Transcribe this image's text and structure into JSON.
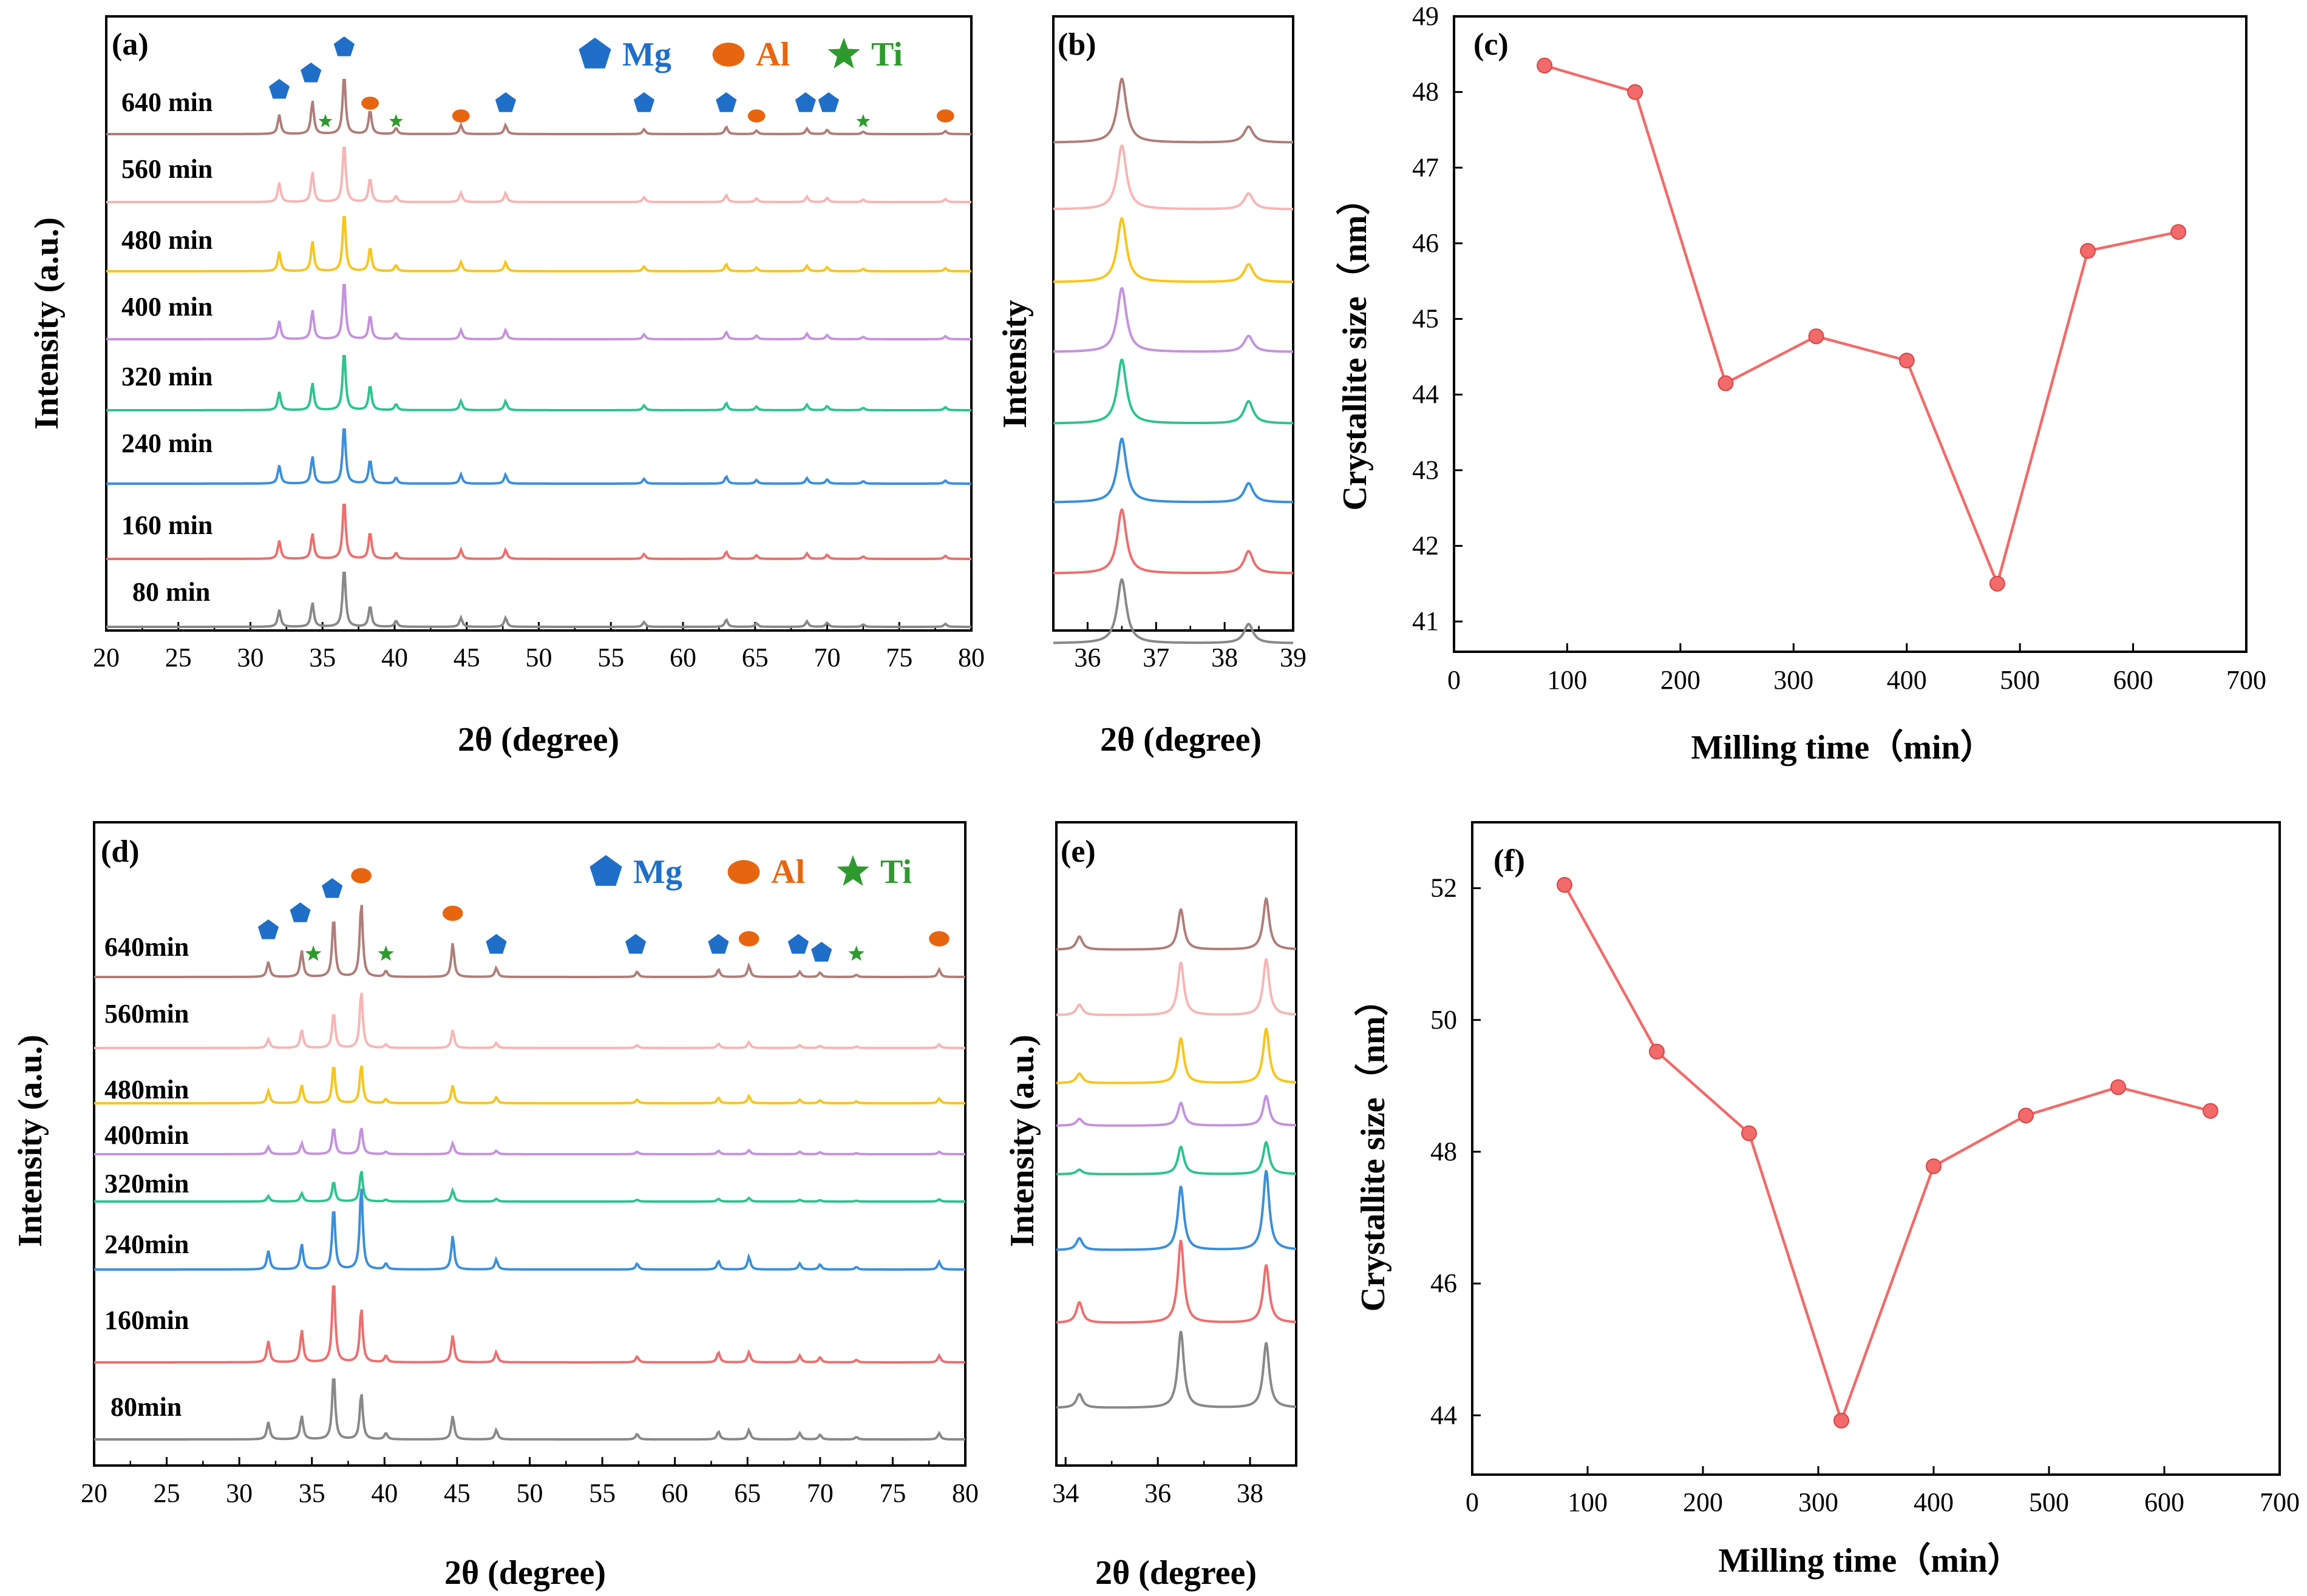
{
  "chart_data": [
    {
      "panel": "(a)",
      "type": "line",
      "xlabel": "2θ (degree)",
      "ylabel": "Intensity (a.u.)",
      "xlim": [
        20,
        80
      ],
      "xticks": [
        20,
        25,
        30,
        35,
        40,
        45,
        50,
        55,
        60,
        65,
        70,
        75,
        80
      ],
      "series": [
        {
          "name": "80 min",
          "color": "#888888"
        },
        {
          "name": "160 min",
          "color": "#ee6e6e"
        },
        {
          "name": "240 min",
          "color": "#3a8fdd"
        },
        {
          "name": "320 min",
          "color": "#2dc48d"
        },
        {
          "name": "400 min",
          "color": "#c592df"
        },
        {
          "name": "480 min",
          "color": "#f8c51c"
        },
        {
          "name": "560 min",
          "color": "#f8b5b5"
        },
        {
          "name": "640 min",
          "color": "#b07d79"
        }
      ],
      "peaks": [
        {
          "x": 32.0,
          "h": [
            0.28,
            0.3,
            0.3,
            0.3,
            0.3,
            0.32,
            0.32,
            0.32
          ]
        },
        {
          "x": 34.3,
          "h": [
            0.4,
            0.42,
            0.45,
            0.45,
            0.48,
            0.5,
            0.5,
            0.55
          ]
        },
        {
          "x": 36.5,
          "h": [
            1.0,
            1.0,
            1.0,
            1.0,
            1.0,
            1.0,
            1.0,
            1.0
          ]
        },
        {
          "x": 38.3,
          "h": [
            0.35,
            0.45,
            0.4,
            0.42,
            0.4,
            0.4,
            0.4,
            0.4
          ]
        },
        {
          "x": 40.1,
          "h": [
            0.1,
            0.1,
            0.1,
            0.1,
            0.1,
            0.1,
            0.1,
            0.1
          ]
        },
        {
          "x": 44.6,
          "h": [
            0.15,
            0.15,
            0.15,
            0.15,
            0.15,
            0.15,
            0.15,
            0.15
          ]
        },
        {
          "x": 47.7,
          "h": [
            0.15,
            0.15,
            0.15,
            0.15,
            0.15,
            0.15,
            0.15,
            0.15
          ]
        },
        {
          "x": 57.3,
          "h": [
            0.08,
            0.08,
            0.08,
            0.08,
            0.08,
            0.08,
            0.08,
            0.08
          ]
        },
        {
          "x": 63.0,
          "h": [
            0.12,
            0.12,
            0.12,
            0.12,
            0.12,
            0.12,
            0.12,
            0.12
          ]
        },
        {
          "x": 65.1,
          "h": [
            0.06,
            0.06,
            0.06,
            0.06,
            0.06,
            0.06,
            0.06,
            0.06
          ]
        },
        {
          "x": 68.6,
          "h": [
            0.09,
            0.09,
            0.09,
            0.09,
            0.09,
            0.09,
            0.09,
            0.09
          ]
        },
        {
          "x": 70.0,
          "h": [
            0.07,
            0.07,
            0.07,
            0.07,
            0.07,
            0.07,
            0.07,
            0.07
          ]
        },
        {
          "x": 72.5,
          "h": [
            0.04,
            0.04,
            0.04,
            0.04,
            0.04,
            0.04,
            0.04,
            0.04
          ]
        },
        {
          "x": 78.2,
          "h": [
            0.05,
            0.05,
            0.05,
            0.05,
            0.05,
            0.05,
            0.05,
            0.05
          ]
        }
      ],
      "legend": [
        {
          "label": "Mg",
          "marker": "pentagon",
          "color": "#1f6fc9"
        },
        {
          "label": "Al",
          "marker": "circle",
          "color": "#e8650f"
        },
        {
          "label": "Ti",
          "marker": "star",
          "color": "#2e9a2e"
        }
      ],
      "markers": [
        {
          "type": "pentagon",
          "x": 32.0,
          "level": "mid"
        },
        {
          "type": "pentagon",
          "x": 34.2,
          "level": "high"
        },
        {
          "type": "pentagon",
          "x": 36.5,
          "level": "top"
        },
        {
          "type": "star",
          "x": 35.2,
          "level": "low"
        },
        {
          "type": "circle",
          "x": 38.3,
          "level": "mid-low"
        },
        {
          "type": "star",
          "x": 40.1,
          "level": "low"
        },
        {
          "type": "circle",
          "x": 44.6,
          "level": "lower"
        },
        {
          "type": "pentagon",
          "x": 47.7,
          "level": "mid-low"
        },
        {
          "type": "pentagon",
          "x": 57.3,
          "level": "mid-low"
        },
        {
          "type": "pentagon",
          "x": 63.0,
          "level": "mid-low"
        },
        {
          "type": "circle",
          "x": 65.1,
          "level": "lower"
        },
        {
          "type": "pentagon",
          "x": 68.5,
          "level": "mid-low"
        },
        {
          "type": "pentagon",
          "x": 70.1,
          "level": "mid-low"
        },
        {
          "type": "star",
          "x": 72.5,
          "level": "low"
        },
        {
          "type": "circle",
          "x": 78.2,
          "level": "lower"
        }
      ]
    },
    {
      "panel": "(b)",
      "type": "line",
      "xlabel": "2θ (degree)",
      "ylabel": "Intensity",
      "xlim": [
        35.5,
        39
      ],
      "xticks": [
        36,
        37,
        38,
        39
      ],
      "series_colors": [
        "#888888",
        "#ee6e6e",
        "#3a8fdd",
        "#2dc48d",
        "#c592df",
        "#f8c51c",
        "#f8b5b5",
        "#b07d79"
      ],
      "peaks": [
        {
          "x": 36.5,
          "h": [
            1.0,
            1.0,
            1.0,
            1.0,
            1.0,
            1.0,
            1.0,
            1.0
          ]
        },
        {
          "x": 38.35,
          "h": [
            0.3,
            0.35,
            0.3,
            0.35,
            0.25,
            0.28,
            0.25,
            0.25
          ]
        }
      ]
    },
    {
      "panel": "(c)",
      "type": "line",
      "xlabel": "Milling time（min）",
      "ylabel": "Crystallite size（nm）",
      "xlim": [
        0,
        700
      ],
      "ylim": [
        40.6,
        49
      ],
      "xticks": [
        0,
        100,
        200,
        300,
        400,
        500,
        600,
        700
      ],
      "yticks": [
        41,
        42,
        43,
        44,
        45,
        46,
        47,
        48,
        49
      ],
      "x": [
        80,
        160,
        240,
        320,
        400,
        480,
        560,
        640
      ],
      "y": [
        48.35,
        48.0,
        44.15,
        44.77,
        44.45,
        41.5,
        45.9,
        46.15
      ]
    },
    {
      "panel": "(d)",
      "type": "line",
      "xlabel": "2θ (degree)",
      "ylabel": "Intensity (a.u.)",
      "xlim": [
        20,
        80
      ],
      "xticks": [
        20,
        25,
        30,
        35,
        40,
        45,
        50,
        55,
        60,
        65,
        70,
        75,
        80
      ],
      "series": [
        {
          "name": "80min",
          "color": "#888888"
        },
        {
          "name": "160min",
          "color": "#ee6e6e"
        },
        {
          "name": "240min",
          "color": "#3a8fdd"
        },
        {
          "name": "320min",
          "color": "#2dc48d"
        },
        {
          "name": "400min",
          "color": "#c592df"
        },
        {
          "name": "480min",
          "color": "#f8c51c"
        },
        {
          "name": "560min",
          "color": "#f8b5b5"
        },
        {
          "name": "640min",
          "color": "#b07d79"
        }
      ],
      "peaks": [
        {
          "x": 32.0,
          "h": [
            0.22,
            0.25,
            0.22,
            0.12,
            0.15,
            0.2,
            0.12,
            0.2
          ]
        },
        {
          "x": 34.3,
          "h": [
            0.3,
            0.38,
            0.3,
            0.18,
            0.22,
            0.3,
            0.25,
            0.35
          ]
        },
        {
          "x": 36.5,
          "h": [
            0.85,
            1.0,
            0.75,
            0.45,
            0.55,
            0.65,
            0.5,
            0.8
          ]
        },
        {
          "x": 38.4,
          "h": [
            0.6,
            0.65,
            1.0,
            0.7,
            0.55,
            0.65,
            0.8,
            1.0
          ]
        },
        {
          "x": 40.1,
          "h": [
            0.08,
            0.08,
            0.07,
            0.04,
            0.05,
            0.07,
            0.05,
            0.08
          ]
        },
        {
          "x": 44.7,
          "h": [
            0.3,
            0.32,
            0.4,
            0.25,
            0.22,
            0.3,
            0.25,
            0.45
          ]
        },
        {
          "x": 47.7,
          "h": [
            0.12,
            0.12,
            0.12,
            0.06,
            0.07,
            0.1,
            0.07,
            0.12
          ]
        },
        {
          "x": 57.4,
          "h": [
            0.07,
            0.07,
            0.07,
            0.04,
            0.05,
            0.06,
            0.04,
            0.07
          ]
        },
        {
          "x": 63.0,
          "h": [
            0.1,
            0.12,
            0.1,
            0.06,
            0.07,
            0.09,
            0.06,
            0.1
          ]
        },
        {
          "x": 65.1,
          "h": [
            0.12,
            0.12,
            0.15,
            0.08,
            0.08,
            0.12,
            0.08,
            0.15
          ]
        },
        {
          "x": 68.6,
          "h": [
            0.08,
            0.08,
            0.07,
            0.04,
            0.05,
            0.06,
            0.04,
            0.07
          ]
        },
        {
          "x": 70.0,
          "h": [
            0.06,
            0.06,
            0.06,
            0.03,
            0.04,
            0.05,
            0.03,
            0.06
          ]
        },
        {
          "x": 72.5,
          "h": [
            0.03,
            0.03,
            0.03,
            0.02,
            0.02,
            0.03,
            0.02,
            0.03
          ]
        },
        {
          "x": 78.2,
          "h": [
            0.08,
            0.08,
            0.09,
            0.05,
            0.05,
            0.08,
            0.05,
            0.1
          ]
        }
      ],
      "legend": [
        {
          "label": "Mg",
          "marker": "pentagon",
          "color": "#1f6fc9"
        },
        {
          "label": "Al",
          "marker": "circle",
          "color": "#e8650f"
        },
        {
          "label": "Ti",
          "marker": "star",
          "color": "#2e9a2e"
        }
      ],
      "markers": [
        {
          "type": "pentagon",
          "x": 32.0,
          "level": "mid"
        },
        {
          "type": "pentagon",
          "x": 34.2,
          "level": "high"
        },
        {
          "type": "pentagon",
          "x": 36.4,
          "level": "top"
        },
        {
          "type": "circle",
          "x": 38.4,
          "level": "topmost"
        },
        {
          "type": "star",
          "x": 35.1,
          "level": "low"
        },
        {
          "type": "star",
          "x": 40.1,
          "level": "low"
        },
        {
          "type": "circle",
          "x": 44.7,
          "level": "high"
        },
        {
          "type": "pentagon",
          "x": 47.7,
          "level": "mid-low"
        },
        {
          "type": "pentagon",
          "x": 57.3,
          "level": "mid-low"
        },
        {
          "type": "pentagon",
          "x": 63.0,
          "level": "mid-low"
        },
        {
          "type": "circle",
          "x": 65.1,
          "level": "mid-low2"
        },
        {
          "type": "pentagon",
          "x": 68.5,
          "level": "mid-low"
        },
        {
          "type": "pentagon",
          "x": 70.1,
          "level": "low2"
        },
        {
          "type": "star",
          "x": 72.5,
          "level": "low"
        },
        {
          "type": "circle",
          "x": 78.2,
          "level": "mid-low2"
        }
      ]
    },
    {
      "panel": "(e)",
      "type": "line",
      "xlabel": "2θ (degree)",
      "ylabel": "Intensity    (a.u.)",
      "xlim": [
        33.8,
        39
      ],
      "xticks": [
        34,
        36,
        38
      ],
      "series_colors": [
        "#888888",
        "#ee6e6e",
        "#3a8fdd",
        "#2dc48d",
        "#c592df",
        "#f8c51c",
        "#f8b5b5",
        "#b07d79"
      ],
      "peaks": [
        {
          "x": 34.3,
          "h": [
            0.18,
            0.25,
            0.15,
            0.1,
            0.15,
            0.15,
            0.15,
            0.18
          ]
        },
        {
          "x": 36.5,
          "h": [
            1.0,
            1.0,
            0.8,
            0.6,
            0.5,
            0.7,
            0.75,
            0.55
          ]
        },
        {
          "x": 38.35,
          "h": [
            0.85,
            0.7,
            1.0,
            0.7,
            0.65,
            0.85,
            0.8,
            0.7
          ]
        }
      ]
    },
    {
      "panel": "(f)",
      "type": "line",
      "xlabel": "Milling time（min）",
      "ylabel": "Crystallite size（nm）",
      "xlim": [
        0,
        700
      ],
      "ylim": [
        43.1,
        53.0
      ],
      "xticks": [
        0,
        100,
        200,
        300,
        400,
        500,
        600,
        700
      ],
      "yticks": [
        44,
        46,
        48,
        50,
        52
      ],
      "x": [
        80,
        160,
        240,
        320,
        400,
        480,
        560,
        640
      ],
      "y": [
        52.05,
        49.52,
        48.28,
        43.92,
        47.78,
        48.55,
        48.98,
        48.62
      ]
    }
  ]
}
